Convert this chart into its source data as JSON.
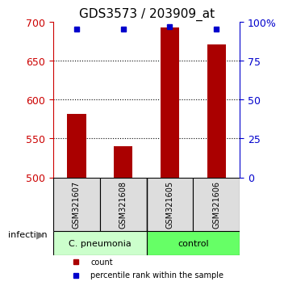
{
  "title": "GDS3573 / 203909_at",
  "samples": [
    "GSM321607",
    "GSM321608",
    "GSM321605",
    "GSM321606"
  ],
  "counts": [
    582,
    540,
    693,
    671
  ],
  "percentile_ranks": [
    95,
    95,
    97,
    95
  ],
  "ylim_left": [
    500,
    700
  ],
  "yticks_left": [
    500,
    550,
    600,
    650,
    700
  ],
  "ylim_right": [
    0,
    100
  ],
  "yticks_right": [
    0,
    25,
    50,
    75,
    100
  ],
  "ytick_labels_right": [
    "0",
    "25",
    "50",
    "75",
    "100%"
  ],
  "bar_color": "#aa0000",
  "dot_color": "#0000cc",
  "grid_color": "#000000",
  "groups": [
    {
      "label": "C. pneumonia",
      "color": "#ccffcc",
      "indices": [
        0,
        1
      ]
    },
    {
      "label": "control",
      "color": "#66ff66",
      "indices": [
        2,
        3
      ]
    }
  ],
  "group_label": "infection",
  "sample_box_color": "#dddddd",
  "legend_items": [
    {
      "color": "#aa0000",
      "marker": "s",
      "label": "count"
    },
    {
      "color": "#0000cc",
      "marker": "s",
      "label": "percentile rank within the sample"
    }
  ],
  "title_fontsize": 11,
  "tick_fontsize": 9,
  "bar_width": 0.4,
  "left_axis_color": "#cc0000",
  "right_axis_color": "#0000cc"
}
